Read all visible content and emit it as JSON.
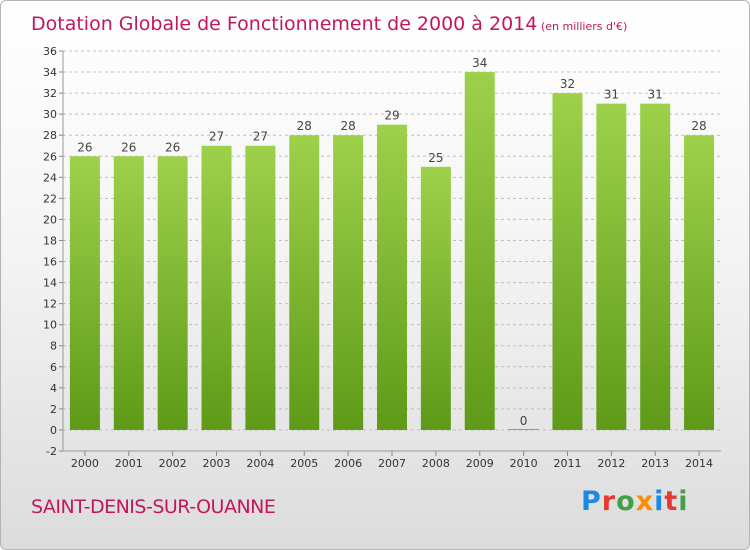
{
  "chart_data": {
    "type": "bar",
    "title": "Dotation Globale de Fonctionnement de 2000 à 2014",
    "subtitle": "(en milliers d'€)",
    "categories": [
      "2000",
      "2001",
      "2002",
      "2003",
      "2004",
      "2005",
      "2006",
      "2007",
      "2008",
      "2009",
      "2010",
      "2011",
      "2012",
      "2013",
      "2014"
    ],
    "values": [
      26,
      26,
      26,
      27,
      27,
      28,
      28,
      29,
      25,
      34,
      0,
      32,
      31,
      31,
      28
    ],
    "data_labels": [
      "26",
      "26",
      "26",
      "27",
      "27",
      "28",
      "28",
      "29",
      "25",
      "34",
      "0",
      "32",
      "31",
      "31",
      "28"
    ],
    "ylim": [
      -2,
      36
    ],
    "yticks": [
      -2,
      0,
      2,
      4,
      6,
      8,
      10,
      12,
      14,
      16,
      18,
      20,
      22,
      24,
      26,
      28,
      30,
      32,
      34,
      36
    ],
    "grid": "horizontal-dashed",
    "bar_color": "#7cb82f",
    "xlabel": "",
    "ylabel": ""
  },
  "footer": {
    "commune": "SAINT-DENIS-SUR-OUANNE"
  },
  "brand": {
    "letters": [
      {
        "char": "P",
        "color": "#1e88e5"
      },
      {
        "char": "r",
        "color": "#e53935"
      },
      {
        "char": "o",
        "color": "#43a047"
      },
      {
        "char": "x",
        "color": "#fb8c00"
      },
      {
        "char": "i",
        "color": "#1e88e5"
      },
      {
        "char": "t",
        "color": "#e53935"
      },
      {
        "char": "i",
        "color": "#43a047"
      }
    ]
  }
}
